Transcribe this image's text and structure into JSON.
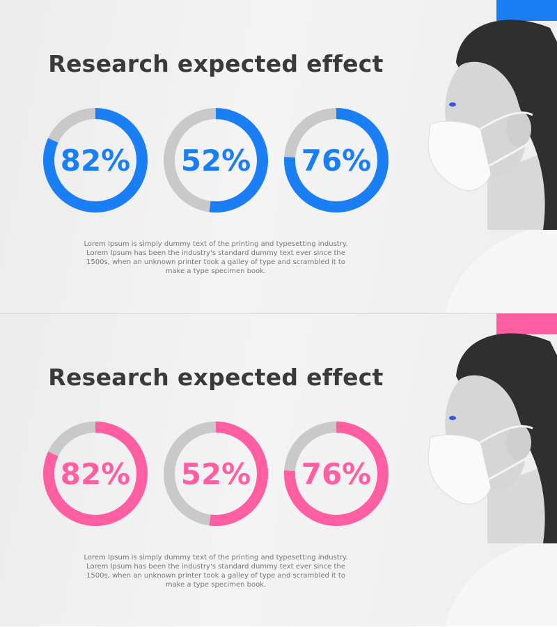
{
  "chart_data": [
    {
      "type": "donut",
      "title": "Research expected effect",
      "caption": "Lorem Ipsum is simply dummy text of the printing and typesetting industry. Lorem Ipsum has been the industry's standard dummy text ever since the 1500s, when an unknown printer took a galley of type and scrambled it to make a type specimen book.",
      "values": [
        82,
        52,
        76
      ],
      "value_labels": [
        "82%",
        "52%",
        "76%"
      ],
      "ylim": [
        0,
        100
      ],
      "color": "#1a7ff5"
    },
    {
      "type": "donut",
      "title": "Research expected effect",
      "caption": "Lorem Ipsum is simply dummy text of the printing and typesetting industry. Lorem Ipsum has been the industry's standard dummy text ever since the 1500s, when an unknown printer took a galley of type and scrambled it to make a type specimen book.",
      "values": [
        82,
        52,
        76
      ],
      "value_labels": [
        "82%",
        "52%",
        "76%"
      ],
      "ylim": [
        0,
        100
      ],
      "color": "#ff5fa2"
    }
  ]
}
